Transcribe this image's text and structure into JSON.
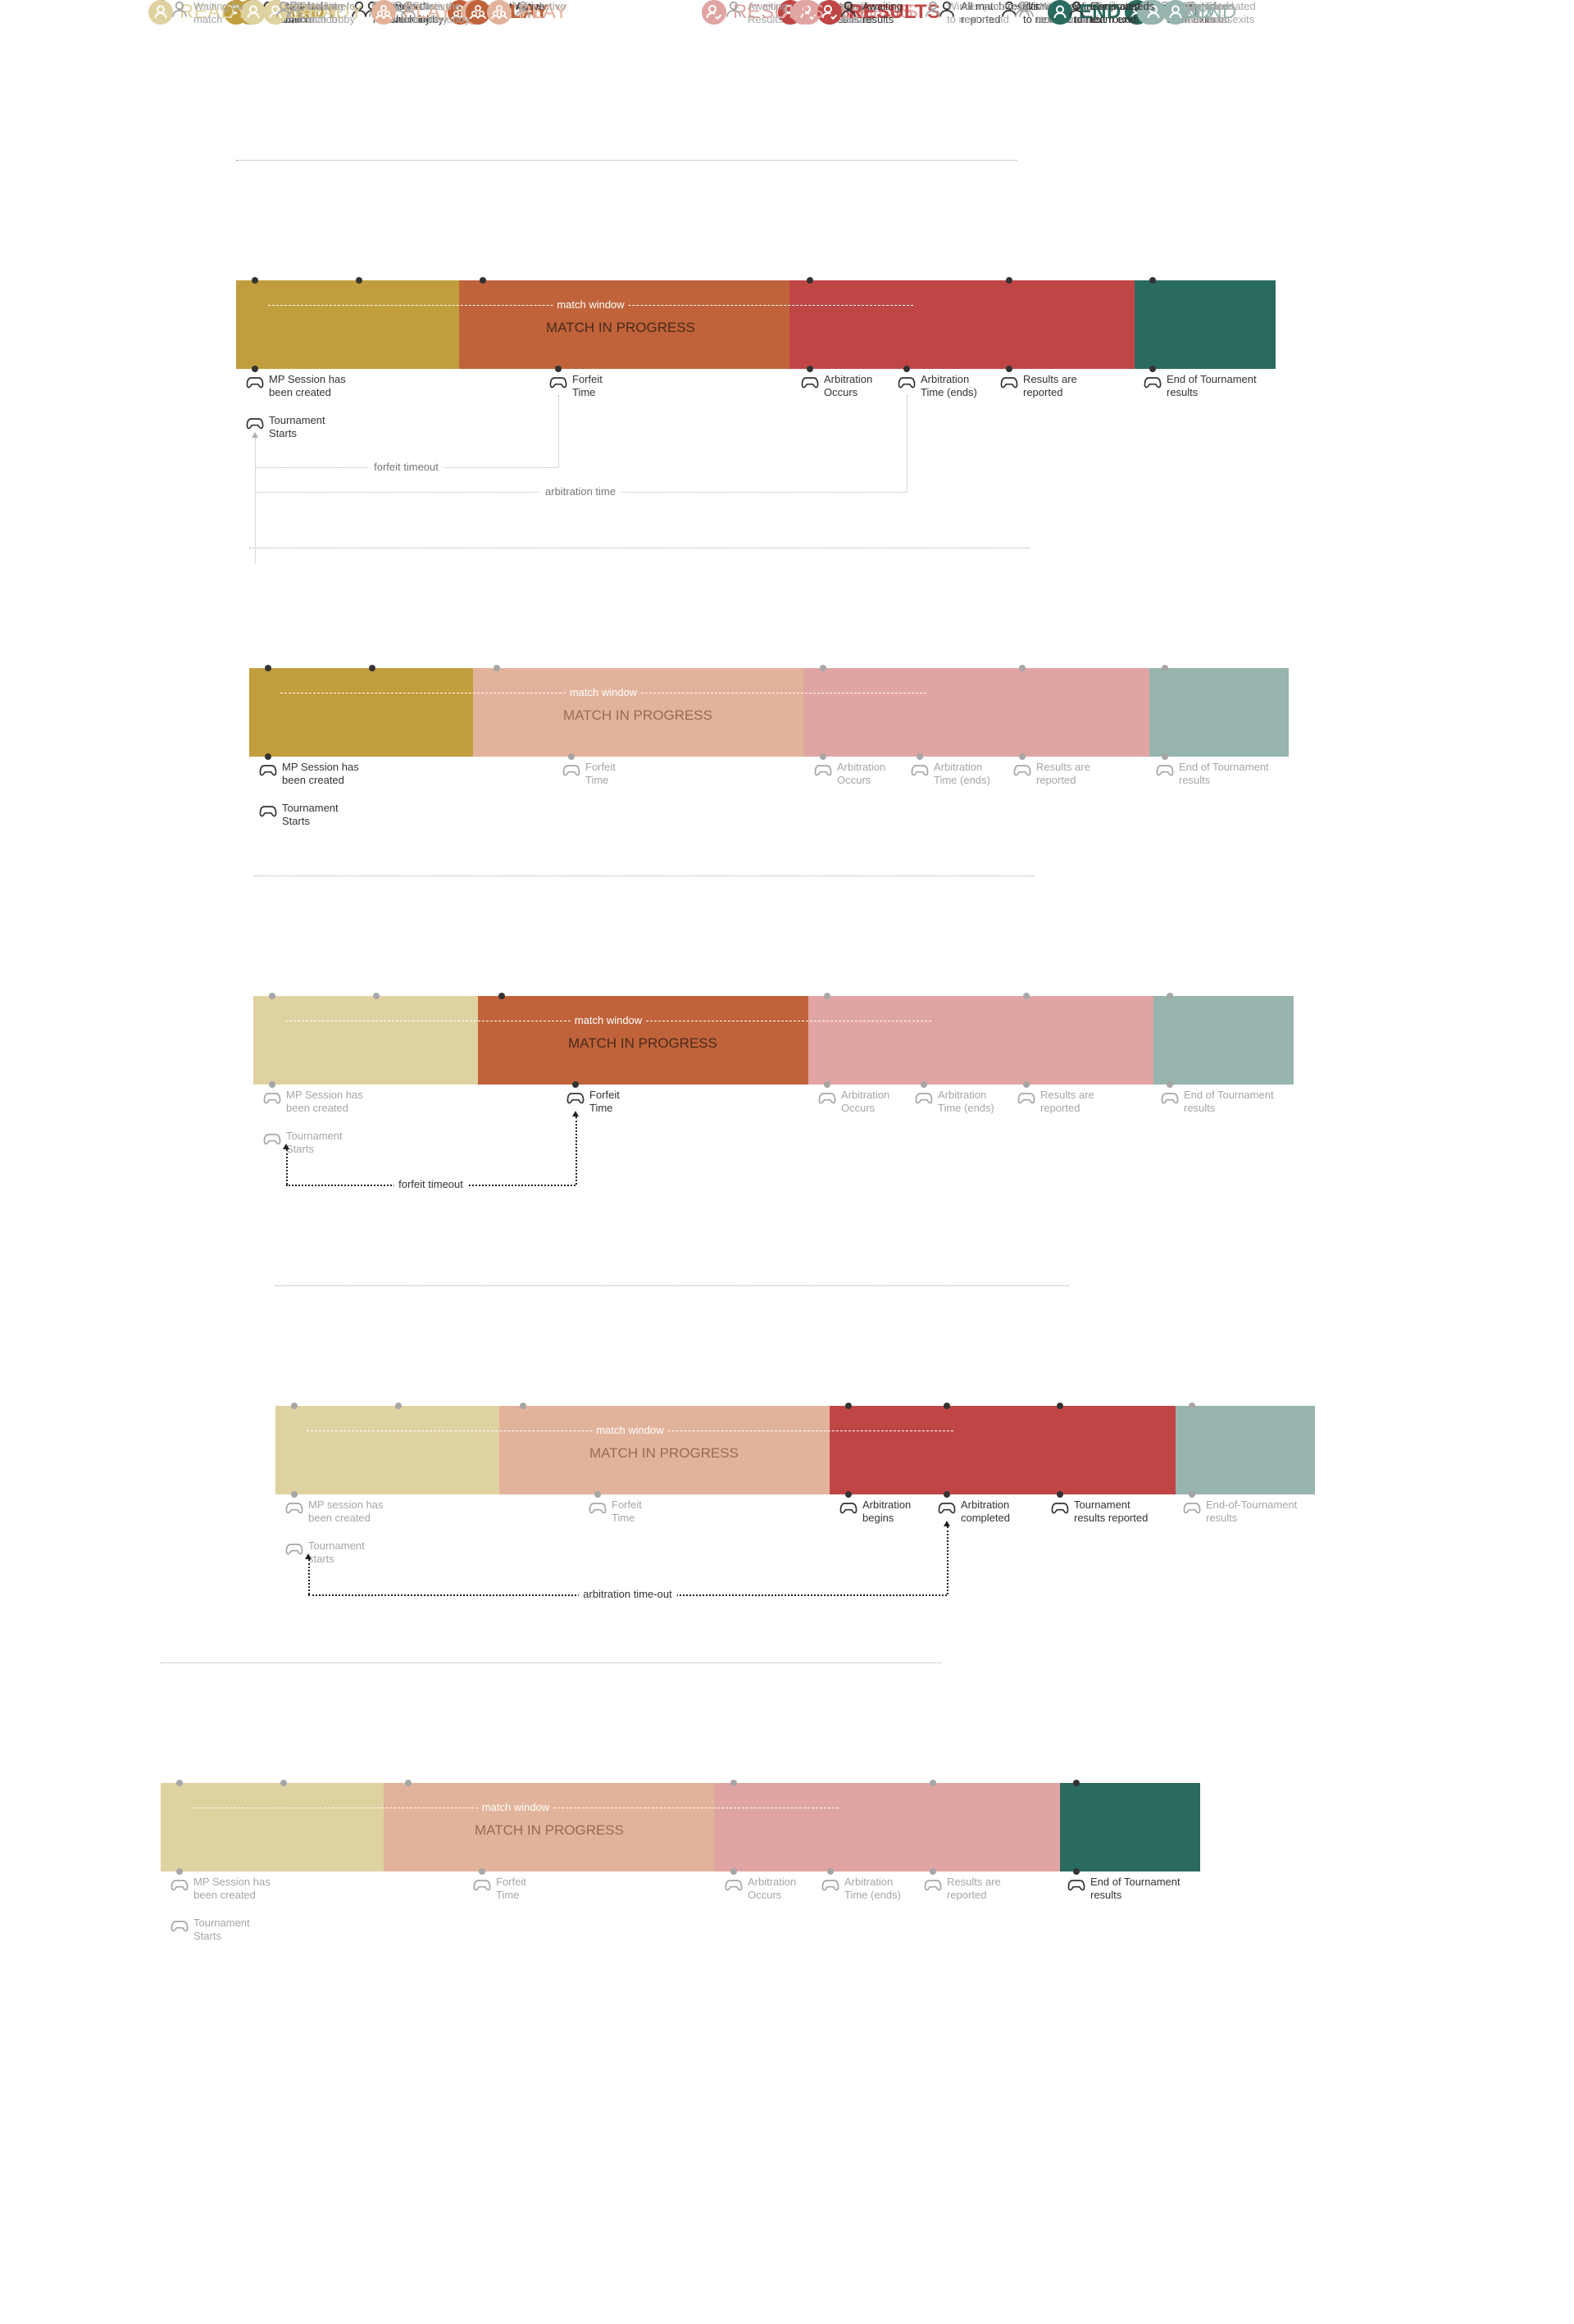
{
  "colors": {
    "ready": "#C19E3D",
    "play": "#C0633A",
    "results": "#C04646",
    "end": "#2A6B5F",
    "ready_dim": "#DFD2A1",
    "play_dim": "#E2B39B",
    "results_dim": "#E0A5A3",
    "end_dim": "#97B4AE",
    "text_dark": "#333333",
    "text_dim": "#A6A6A6",
    "line_dim": "#BBBBBB"
  },
  "diagrams": [
    {
      "id": "overview",
      "active": [
        "ready",
        "play",
        "results",
        "end"
      ],
      "phases": [
        {
          "key": "ready",
          "label": "READY",
          "icon": "person-icon"
        },
        {
          "key": "play",
          "label": "PLAY",
          "icon": "group-icon"
        },
        {
          "key": "results",
          "label": "RESULTS",
          "icon": "person-check-icon"
        },
        {
          "key": "end",
          "label": "END",
          "icon": "person-icon"
        }
      ],
      "top_events": [
        {
          "label": "Waiting for\nmatch",
          "phase": "ready"
        },
        {
          "label": "Enters the\nmatch lobby",
          "phase": "ready"
        },
        {
          "label": "Active",
          "phase": "play"
        },
        {
          "label": "Awaiting\nResults",
          "phase": "results"
        },
        {
          "label": "Winner proceeds\nto next round",
          "phase": "results"
        },
        {
          "label": "Eliminated\nteam exits",
          "phase": "end"
        }
      ],
      "bottom_events": [
        {
          "label": "MP Session has\nbeen created",
          "phase": "ready"
        },
        {
          "label": "Tournament\nStarts",
          "phase": "ready"
        },
        {
          "label": "Forfeit\nTime",
          "phase": "play"
        },
        {
          "label": "Arbitration\nOccurs",
          "phase": "results"
        },
        {
          "label": "Arbitration\nTime (ends)",
          "phase": "results"
        },
        {
          "label": "Results are\nreported",
          "phase": "results"
        },
        {
          "label": "End of Tournament\nresults",
          "phase": "end"
        }
      ],
      "bar_title": "MATCH IN PROGRESS",
      "window_label": "match window",
      "connectors": [
        {
          "label": "forfeit timeout"
        },
        {
          "label": "arbitration time"
        }
      ]
    },
    {
      "id": "ready-focus",
      "active": [
        "ready"
      ],
      "phases": [
        {
          "key": "ready",
          "label": "READY",
          "icon": "person-icon"
        },
        {
          "key": "play",
          "label": "PLAY",
          "icon": "group-icon"
        },
        {
          "key": "results",
          "label": "RESULTS",
          "icon": "person-check-icon"
        },
        {
          "key": "end",
          "label": "END",
          "icon": "person-icon"
        }
      ],
      "top_events": [
        {
          "label": "Waiting for\nmatch",
          "phase": "ready"
        },
        {
          "label": "Enters the\nmatch lobby",
          "phase": "ready"
        },
        {
          "label": "Active",
          "phase": "play"
        },
        {
          "label": "Awaiting\nResults",
          "phase": "results"
        },
        {
          "label": "Winner proceeds\nto next round",
          "phase": "results"
        },
        {
          "label": "Eliminated\nteam exits",
          "phase": "end"
        }
      ],
      "bottom_events": [
        {
          "label": "MP Session has\nbeen created",
          "phase": "ready"
        },
        {
          "label": "Tournament\nStarts",
          "phase": "ready"
        },
        {
          "label": "Forfeit\nTime",
          "phase": "play"
        },
        {
          "label": "Arbitration\nOccurs",
          "phase": "results"
        },
        {
          "label": "Arbitration\nTime (ends)",
          "phase": "results"
        },
        {
          "label": "Results are\nreported",
          "phase": "results"
        },
        {
          "label": "End of Tournament\nresults",
          "phase": "end"
        }
      ],
      "bar_title": "MATCH IN PROGRESS",
      "window_label": "match window",
      "connectors": []
    },
    {
      "id": "play-focus",
      "active": [
        "play"
      ],
      "phases": [
        {
          "key": "ready",
          "label": "READY",
          "icon": "person-icon"
        },
        {
          "key": "play",
          "label": "PLAY",
          "icon": "group-icon"
        },
        {
          "key": "results",
          "label": "RESULTS",
          "icon": "person-check-icon"
        },
        {
          "key": "end",
          "label": "END",
          "icon": "person-icon"
        }
      ],
      "top_events": [
        {
          "label": "Waiting for\nmatch",
          "phase": "ready"
        },
        {
          "label": "Enters the\nmatch lobby",
          "phase": "ready"
        },
        {
          "label": "Active",
          "phase": "play"
        },
        {
          "label": "Awaiting\nResults",
          "phase": "results"
        },
        {
          "label": "Winner proceeds\nto next round",
          "phase": "results"
        },
        {
          "label": "Eliminated\nteam exits",
          "phase": "end"
        }
      ],
      "bottom_events": [
        {
          "label": "MP Session has\nbeen created",
          "phase": "ready"
        },
        {
          "label": "Tournament\nStarts",
          "phase": "ready"
        },
        {
          "label": "Forfeit\nTime",
          "phase": "play"
        },
        {
          "label": "Arbitration\nOccurs",
          "phase": "results"
        },
        {
          "label": "Arbitration\nTime (ends)",
          "phase": "results"
        },
        {
          "label": "Results are\nreported",
          "phase": "results"
        },
        {
          "label": "End of Tournament\nresults",
          "phase": "end"
        }
      ],
      "bar_title": "MATCH IN PROGRESS",
      "window_label": "match window",
      "connectors": [
        {
          "label": "forfeit timeout"
        }
      ]
    },
    {
      "id": "results-focus",
      "active": [
        "results"
      ],
      "phases": [
        {
          "key": "ready",
          "label": "READY",
          "icon": "person-icon"
        },
        {
          "key": "play",
          "label": "PLAY",
          "icon": "group-icon"
        },
        {
          "key": "results",
          "label": "RESULTS",
          "icon": "person-check-icon"
        },
        {
          "key": "end",
          "label": "END",
          "icon": "person-icon"
        }
      ],
      "top_events": [
        {
          "label": "Waiting for\nmatch",
          "phase": "ready"
        },
        {
          "label": "Enters the\nmatch lobby",
          "phase": "ready"
        },
        {
          "label": "Active",
          "phase": "play"
        },
        {
          "label": "Awaiting\nresults",
          "phase": "results"
        },
        {
          "label": "All match results\nreported",
          "phase": "results"
        },
        {
          "label": "Winner proceeds\nto next round",
          "phase": "results"
        },
        {
          "label": "Eliminated\nteam exits",
          "phase": "end"
        }
      ],
      "bottom_events": [
        {
          "label": "MP session has\nbeen created",
          "phase": "ready"
        },
        {
          "label": "Tournament\nstarts",
          "phase": "ready"
        },
        {
          "label": "Forfeit\nTime",
          "phase": "play"
        },
        {
          "label": "Arbitration\nbegins",
          "phase": "results"
        },
        {
          "label": "Arbitration\ncompleted",
          "phase": "results"
        },
        {
          "label": "Tournament\nresults reported",
          "phase": "results"
        },
        {
          "label": "End-of-Tournament\nresults",
          "phase": "end"
        }
      ],
      "bar_title": "MATCH IN PROGRESS",
      "window_label": "match window",
      "connectors": [
        {
          "label": "arbitration time-out"
        }
      ]
    },
    {
      "id": "end-focus",
      "active": [
        "end"
      ],
      "phases": [
        {
          "key": "ready",
          "label": "READY",
          "icon": "person-icon"
        },
        {
          "key": "play",
          "label": "PLAY",
          "icon": "group-icon"
        },
        {
          "key": "results",
          "label": "RESULTS",
          "icon": "person-check-icon"
        },
        {
          "key": "end",
          "label": "END",
          "icon": "person-icon"
        }
      ],
      "top_events": [
        {
          "label": "Waiting for\nmatch",
          "phase": "ready"
        },
        {
          "label": "Enters the\nmatch lobby",
          "phase": "ready"
        },
        {
          "label": "Active",
          "phase": "play"
        },
        {
          "label": "Awaiting\nResults",
          "phase": "results"
        },
        {
          "label": "Winner proceeds\nto next round",
          "phase": "results"
        },
        {
          "label": "Eliminated\nteam exits",
          "phase": "end"
        }
      ],
      "bottom_events": [
        {
          "label": "MP Session has\nbeen created",
          "phase": "ready"
        },
        {
          "label": "Tournament\nStarts",
          "phase": "ready"
        },
        {
          "label": "Forfeit\nTime",
          "phase": "play"
        },
        {
          "label": "Arbitration\nOccurs",
          "phase": "results"
        },
        {
          "label": "Arbitration\nTime (ends)",
          "phase": "results"
        },
        {
          "label": "Results are\nreported",
          "phase": "results"
        },
        {
          "label": "End of Tournament\nresults",
          "phase": "end"
        }
      ],
      "bar_title": "MATCH IN PROGRESS",
      "window_label": "match window",
      "connectors": []
    }
  ]
}
